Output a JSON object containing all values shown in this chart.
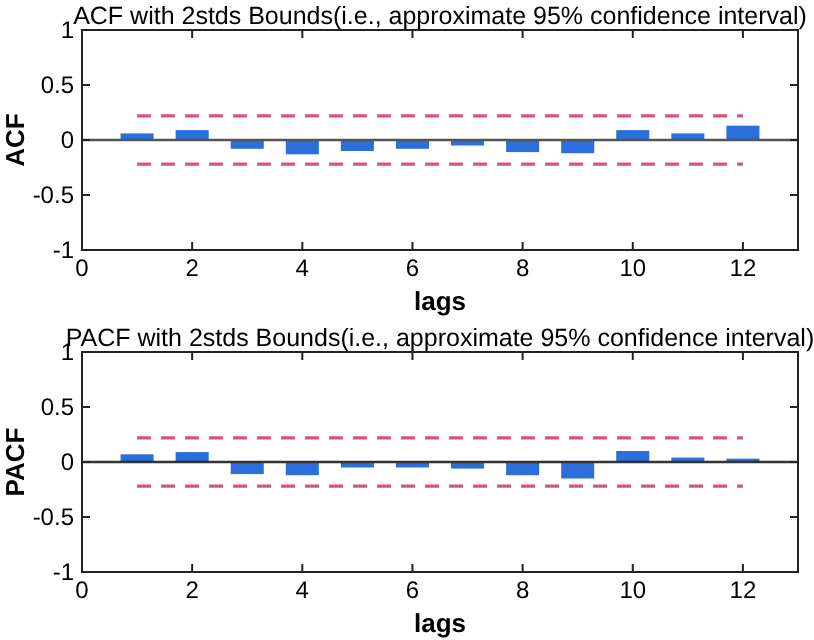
{
  "chart_data": [
    {
      "type": "bar",
      "title": "ACF with  2stds Bounds(i.e., approximate 95% confidence interval)",
      "xlabel": "lags",
      "ylabel": "ACF",
      "x": [
        1,
        2,
        3,
        4,
        5,
        6,
        7,
        8,
        9,
        10,
        11,
        12
      ],
      "series": [
        {
          "color": "#2a6fdb",
          "values": [
            0.06,
            0.09,
            -0.08,
            -0.13,
            -0.1,
            -0.08,
            -0.05,
            -0.11,
            -0.12,
            0.09,
            0.06,
            0.13
          ]
        }
      ],
      "xlim": [
        0,
        13
      ],
      "xticks": [
        0,
        2,
        4,
        6,
        8,
        10,
        12
      ],
      "ylim": [
        -1,
        1
      ],
      "yticks": [
        -1,
        -0.5,
        0,
        0.5,
        1
      ],
      "ref_lines": [
        {
          "axis": "y",
          "value": 0.22,
          "color": "#d9547a",
          "line_style": "dashed"
        },
        {
          "axis": "y",
          "value": -0.22,
          "color": "#d9547a",
          "line_style": "dashed"
        },
        {
          "axis": "y",
          "value": 0,
          "color": "#555555",
          "line_style": "solid"
        }
      ]
    },
    {
      "type": "bar",
      "title": "PACF with  2stds Bounds(i.e., approximate 95% confidence interval)",
      "xlabel": "lags",
      "ylabel": "PACF",
      "x": [
        1,
        2,
        3,
        4,
        5,
        6,
        7,
        8,
        9,
        10,
        11,
        12
      ],
      "series": [
        {
          "color": "#2a6fdb",
          "values": [
            0.07,
            0.09,
            -0.11,
            -0.12,
            -0.05,
            -0.05,
            -0.06,
            -0.12,
            -0.15,
            0.1,
            0.04,
            0.03
          ]
        }
      ],
      "xlim": [
        0,
        13
      ],
      "xticks": [
        0,
        2,
        4,
        6,
        8,
        10,
        12
      ],
      "ylim": [
        -1,
        1
      ],
      "yticks": [
        -1,
        -0.5,
        0,
        0.5,
        1
      ],
      "ref_lines": [
        {
          "axis": "y",
          "value": 0.22,
          "color": "#d9547a",
          "line_style": "dashed"
        },
        {
          "axis": "y",
          "value": -0.22,
          "color": "#d9547a",
          "line_style": "dashed"
        },
        {
          "axis": "y",
          "value": 0,
          "color": "#333333",
          "line_style": "solid"
        }
      ]
    }
  ]
}
